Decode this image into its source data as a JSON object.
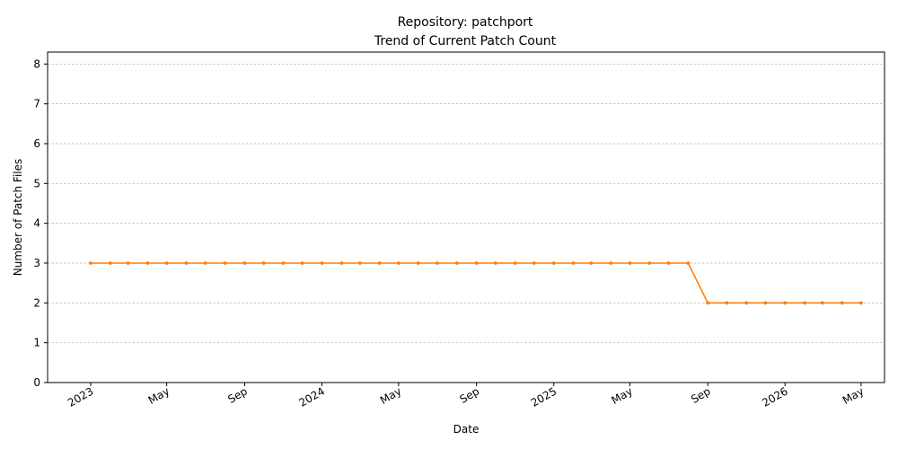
{
  "chart_data": {
    "type": "line",
    "title": "Repository: patchport",
    "subtitle": "Trend of Current Patch Count",
    "xlabel": "Date",
    "ylabel": "Number of Patch Files",
    "ylim": [
      0,
      8.3
    ],
    "xlim": [
      "2022-10-25",
      "2026-06-07"
    ],
    "grid": "horizontal dashed",
    "y_ticks": [
      0,
      1,
      2,
      3,
      4,
      5,
      6,
      7,
      8
    ],
    "x_ticks": [
      {
        "date": "2023-01-01",
        "label": "2023"
      },
      {
        "date": "2023-05-01",
        "label": "May"
      },
      {
        "date": "2023-09-01",
        "label": "Sep"
      },
      {
        "date": "2024-01-01",
        "label": "2024"
      },
      {
        "date": "2024-05-01",
        "label": "May"
      },
      {
        "date": "2024-09-01",
        "label": "Sep"
      },
      {
        "date": "2025-01-01",
        "label": "2025"
      },
      {
        "date": "2025-05-01",
        "label": "May"
      },
      {
        "date": "2025-09-01",
        "label": "Sep"
      },
      {
        "date": "2026-01-01",
        "label": "2026"
      },
      {
        "date": "2026-05-01",
        "label": "May"
      }
    ],
    "series": [
      {
        "color": "#ff7f0e",
        "x": [
          "2023-01-01",
          "2023-02-01",
          "2023-03-01",
          "2023-04-01",
          "2023-05-01",
          "2023-06-01",
          "2023-07-01",
          "2023-08-01",
          "2023-09-01",
          "2023-10-01",
          "2023-11-01",
          "2023-12-01",
          "2024-01-01",
          "2024-02-01",
          "2024-03-01",
          "2024-04-01",
          "2024-05-01",
          "2024-06-01",
          "2024-07-01",
          "2024-08-01",
          "2024-09-01",
          "2024-10-01",
          "2024-11-01",
          "2024-12-01",
          "2025-01-01",
          "2025-02-01",
          "2025-03-01",
          "2025-04-01",
          "2025-05-01",
          "2025-06-01",
          "2025-07-01",
          "2025-08-01",
          "2025-09-01",
          "2025-10-01",
          "2025-11-01",
          "2025-12-01",
          "2026-01-01",
          "2026-02-01",
          "2026-03-01",
          "2026-04-01",
          "2026-05-01"
        ],
        "values": [
          3,
          3,
          3,
          3,
          3,
          3,
          3,
          3,
          3,
          3,
          3,
          3,
          3,
          3,
          3,
          3,
          3,
          3,
          3,
          3,
          3,
          3,
          3,
          3,
          3,
          3,
          3,
          3,
          3,
          3,
          3,
          3,
          2,
          2,
          2,
          2,
          2,
          2,
          2,
          2,
          2
        ]
      }
    ]
  }
}
